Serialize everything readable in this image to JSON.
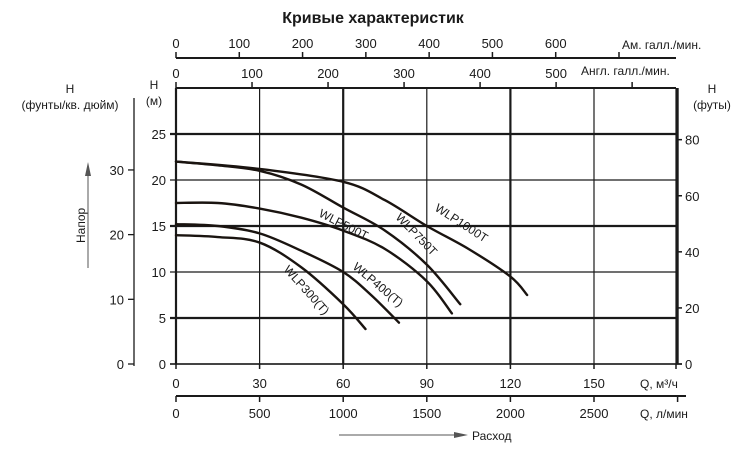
{
  "title": "Кривые характеристик",
  "axes": {
    "top_us": {
      "label": "Ам. галл./мин.",
      "ticks": [
        "0",
        "100",
        "200",
        "300",
        "400",
        "500",
        "600"
      ]
    },
    "top_uk": {
      "label": "Англ. галл./мин.",
      "ticks": [
        "0",
        "100",
        "200",
        "300",
        "400",
        "500"
      ]
    },
    "left_psi": {
      "label_line1": "H",
      "label_line2": "(фунты/кв. дюйм)",
      "ticks": [
        "0",
        "10",
        "20",
        "30"
      ]
    },
    "left_m": {
      "label_line1": "H",
      "label_line2": "(м)",
      "ticks": [
        "0",
        "5",
        "10",
        "15",
        "20",
        "25"
      ]
    },
    "right_ft": {
      "label_line1": "H",
      "label_line2": "(футы)",
      "ticks": [
        "0",
        "20",
        "40",
        "60",
        "80"
      ]
    },
    "bottom_m3h": {
      "label": "Q, м³/ч",
      "ticks": [
        "0",
        "30",
        "60",
        "90",
        "120",
        "150"
      ]
    },
    "bottom_lmin": {
      "label": "Q, л/мин",
      "ticks": [
        "0",
        "500",
        "1000",
        "1500",
        "2000",
        "2500"
      ]
    },
    "head_arrow_label": "Напор",
    "flow_arrow_label": "Расход"
  },
  "chart_data": {
    "type": "line",
    "title": "Кривые характеристик",
    "xlabel": "Q, м³/ч",
    "ylabel": "H (м)",
    "xlim": [
      0,
      180
    ],
    "ylim": [
      0,
      25
    ],
    "grid": true,
    "secondary_axes": {
      "x_lmin": [
        0,
        500,
        1000,
        1500,
        2000,
        2500
      ],
      "x_us_gpm": [
        0,
        100,
        200,
        300,
        400,
        500,
        600
      ],
      "x_uk_gpm": [
        0,
        100,
        200,
        300,
        400,
        500
      ],
      "y_psi": [
        0,
        10,
        20,
        30
      ],
      "y_ft": [
        0,
        20,
        40,
        60,
        80
      ]
    },
    "series": [
      {
        "name": "WLP300(T)",
        "x": [
          0,
          15,
          30,
          45,
          60,
          68
        ],
        "y": [
          14.0,
          13.8,
          13.2,
          10.5,
          6.5,
          3.8
        ]
      },
      {
        "name": "WLP400(T)",
        "x": [
          0,
          15,
          30,
          45,
          60,
          70,
          80
        ],
        "y": [
          15.2,
          15.0,
          14.2,
          12.3,
          10.0,
          7.5,
          4.5
        ]
      },
      {
        "name": "WLP500T",
        "x": [
          0,
          15,
          30,
          45,
          60,
          75,
          90,
          99
        ],
        "y": [
          17.5,
          17.5,
          16.9,
          15.9,
          14.5,
          12.5,
          9.0,
          5.5
        ]
      },
      {
        "name": "WLP750T",
        "x": [
          0,
          15,
          30,
          45,
          60,
          75,
          90,
          102
        ],
        "y": [
          22.0,
          21.6,
          21.0,
          19.5,
          17.0,
          14.5,
          10.8,
          6.5
        ]
      },
      {
        "name": "WLP1000T",
        "x": [
          0,
          30,
          60,
          75,
          90,
          105,
          120,
          126
        ],
        "y": [
          22.0,
          21.2,
          19.8,
          17.8,
          15.0,
          12.5,
          9.5,
          7.5
        ]
      }
    ]
  }
}
